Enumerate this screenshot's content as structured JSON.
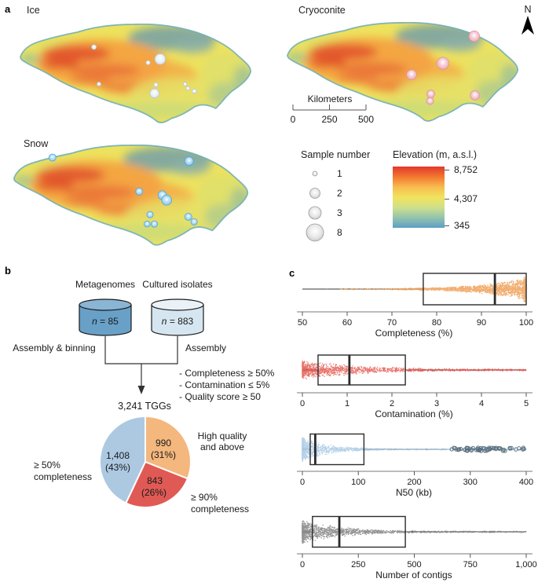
{
  "figure": {
    "panel_a": "a",
    "panel_b": "b",
    "panel_c": "c"
  },
  "maps": {
    "ice": {
      "title": "Ice",
      "bubble_color": "#dfe9f3",
      "bubble_edge": "#b5c4d1",
      "bubbles": [
        {
          "x": 105,
          "y": 33,
          "r": 3.4
        },
        {
          "x": 198,
          "y": 50,
          "r": 7.5
        },
        {
          "x": 181,
          "y": 55,
          "r": 3
        },
        {
          "x": 112,
          "y": 85,
          "r": 2.8
        },
        {
          "x": 192,
          "y": 86,
          "r": 3
        },
        {
          "x": 190,
          "y": 98,
          "r": 6.5
        },
        {
          "x": 233,
          "y": 85,
          "r": 2.6
        },
        {
          "x": 237,
          "y": 91,
          "r": 2.6
        },
        {
          "x": 246,
          "y": 95,
          "r": 3.2
        }
      ]
    },
    "cryoconite": {
      "title": "Cryoconite",
      "bubble_color": "#f0aab9",
      "bubble_edge": "#d98fa0",
      "bubbles": [
        {
          "x": 264,
          "y": 20,
          "r": 7.5
        },
        {
          "x": 220,
          "y": 58,
          "r": 8.5
        },
        {
          "x": 176,
          "y": 74,
          "r": 7
        },
        {
          "x": 203,
          "y": 101,
          "r": 5.5
        },
        {
          "x": 202,
          "y": 111,
          "r": 5
        },
        {
          "x": 265,
          "y": 103,
          "r": 6.5
        }
      ]
    },
    "snow": {
      "title": "Snow",
      "bubble_color": "#7cc4ec",
      "bubble_edge": "#54a3d6",
      "bubbles": [
        {
          "x": 55,
          "y": 18,
          "r": 5
        },
        {
          "x": 244,
          "y": 23,
          "r": 6
        },
        {
          "x": 175,
          "y": 65,
          "r": 5
        },
        {
          "x": 207,
          "y": 70,
          "r": 6
        },
        {
          "x": 213,
          "y": 77,
          "r": 7
        },
        {
          "x": 190,
          "y": 97,
          "r": 4.5
        },
        {
          "x": 186,
          "y": 110,
          "r": 4.2
        },
        {
          "x": 196,
          "y": 110,
          "r": 4.5
        },
        {
          "x": 243,
          "y": 100,
          "r": 5
        },
        {
          "x": 251,
          "y": 107,
          "r": 4.5
        }
      ]
    }
  },
  "north": {
    "label": "N"
  },
  "scalebar": {
    "title": "Kilometers",
    "ticks": [
      "0",
      "250",
      "500"
    ]
  },
  "sample_legend": {
    "title": "Sample number",
    "items": [
      {
        "label": "1",
        "r": 3
      },
      {
        "label": "2",
        "r": 6.5
      },
      {
        "label": "3",
        "r": 8
      },
      {
        "label": "8",
        "r": 11
      }
    ]
  },
  "elevation_legend": {
    "title": "Elevation (m, a.s.l.)",
    "stops": [
      "#E2382D",
      "#F2772F",
      "#F8BB50",
      "#F2E35C",
      "#CFE08A",
      "#93C4AC",
      "#5E9EC6"
    ],
    "ticks": [
      {
        "label": "8,752",
        "pos": 0.05
      },
      {
        "label": "4,307",
        "pos": 0.52
      },
      {
        "label": "345",
        "pos": 0.96
      }
    ]
  },
  "flowchart": {
    "left_title": "Metagenomes",
    "right_title": "Cultured isolates",
    "left_n": {
      "var": "n",
      "rest": " = 85"
    },
    "right_n": {
      "var": "n",
      "rest": " = 883"
    },
    "left_process": "Assembly & binning",
    "right_process": "Assembly",
    "criteria": [
      "- Completeness ≥ 50%",
      "- Contamination ≤ 5%",
      "- Quality score ≥ 50"
    ],
    "result": "3,241 TGGs",
    "left_fill": "#69A0C7",
    "left_top": "#8AB5D4",
    "right_fill": "#D6E6F1",
    "right_top": "#EAF2F8"
  },
  "chart_data": [
    {
      "type": "pie",
      "total_label": "3,241 TGGs",
      "slices": [
        {
          "name": "High quality and above",
          "value": 990,
          "pct": 31,
          "value_label": "990",
          "pct_label": "(31%)",
          "color": "#F4B77D"
        },
        {
          "name": "≥ 90% completeness",
          "value": 843,
          "pct": 26,
          "value_label": "843",
          "pct_label": "(26%)",
          "color": "#E05A55"
        },
        {
          "name": "≥ 50% completeness",
          "value": 1408,
          "pct": 43,
          "value_label": "1,408",
          "pct_label": "(43%)",
          "color": "#ADC9E2"
        }
      ],
      "annotations": {
        "right_top": [
          "High quality",
          "and above"
        ],
        "left": [
          "≥ 50%",
          "completeness"
        ],
        "right_bottom": [
          "≥ 90%",
          "completeness"
        ]
      }
    },
    {
      "type": "strip-box",
      "id": "completeness",
      "xlabel": "Completeness (%)",
      "xlim": [
        50,
        100
      ],
      "ticks": [
        50,
        60,
        70,
        80,
        90,
        100
      ],
      "tick_labels": [
        "50",
        "60",
        "70",
        "80",
        "90",
        "100"
      ],
      "box": {
        "q1": 77,
        "median": 93,
        "q3": 100,
        "whisker_min": 50,
        "whisker_max": 100
      },
      "color": "#EFA25B",
      "dense_end": "right",
      "sample_power": 0.3,
      "width_power": 5,
      "hw_max": 16,
      "hw_min": 0.9,
      "n": 1500,
      "edge_cluster_n": 260,
      "point_r": 0.8
    },
    {
      "type": "strip-box",
      "id": "contamination",
      "xlabel": "Contamination (%)",
      "xlim": [
        0,
        5
      ],
      "ticks": [
        0,
        1,
        2,
        3,
        4,
        5
      ],
      "tick_labels": [
        "0",
        "1",
        "2",
        "3",
        "4",
        "5"
      ],
      "box": {
        "q1": 0.35,
        "median": 1.05,
        "q3": 2.3,
        "whisker_min": 0,
        "whisker_max": 5
      },
      "color": "#E4574E",
      "dense_end": "left",
      "sample_power": 2.2,
      "width_power": 3,
      "hw_max": 12,
      "hw_min": 1.3,
      "n": 1500,
      "point_r": 0.7
    },
    {
      "type": "strip-box",
      "id": "n50",
      "xlabel": "N50 (kb)",
      "xlim": [
        0,
        400
      ],
      "ticks": [
        0,
        100,
        200,
        300,
        400
      ],
      "tick_labels": [
        "0",
        "100",
        "200",
        "300",
        "400"
      ],
      "box": {
        "q1": 14,
        "median": 23,
        "q3": 110,
        "whisker_min": 0,
        "whisker_max": 258
      },
      "color": "#A9C9E4",
      "dense_end": "left",
      "sample_power": 4,
      "width_power": 8,
      "hw_max": 16,
      "hw_min": 0.7,
      "n": 1500,
      "point_r": 0.75,
      "outliers": {
        "range": [
          265,
          400
        ],
        "n": 58,
        "color": "#5A7080"
      }
    },
    {
      "type": "strip-box",
      "id": "contigs",
      "xlabel": "Number of contigs",
      "xlim": [
        0,
        1000
      ],
      "ticks": [
        0,
        250,
        500,
        750,
        1000
      ],
      "tick_labels": [
        "0",
        "250",
        "500",
        "750",
        "1,000"
      ],
      "box": {
        "q1": 45,
        "median": 165,
        "q3": 460,
        "whisker_min": 0,
        "whisker_max": 1000
      },
      "color": "#838383",
      "dense_end": "left",
      "sample_power": 2.8,
      "width_power": 5,
      "hw_max": 15,
      "hw_min": 1,
      "n": 1600,
      "point_r": 0.75
    }
  ]
}
